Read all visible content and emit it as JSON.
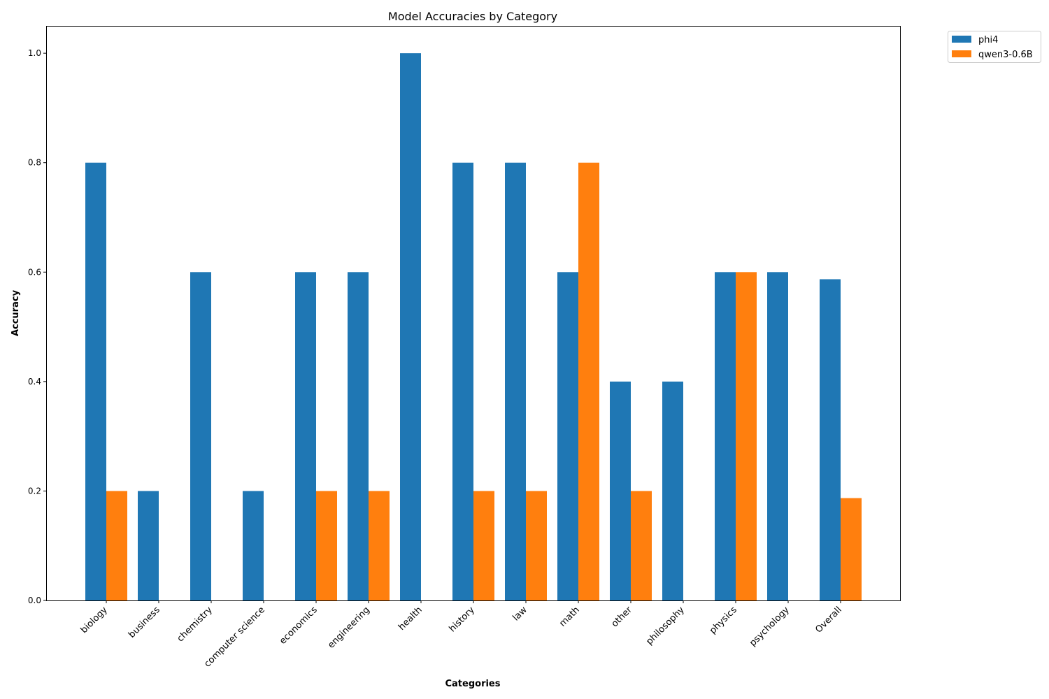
{
  "chart_data": {
    "type": "bar",
    "title": "Model Accuracies by Category",
    "xlabel": "Categories",
    "ylabel": "Accuracy",
    "ylim": [
      0,
      1.05
    ],
    "yticks": [
      "0.0",
      "0.2",
      "0.4",
      "0.6",
      "0.8",
      "1.0"
    ],
    "grid": false,
    "legend_position": "outside-top-right",
    "categories": [
      "biology",
      "business",
      "chemistry",
      "computer science",
      "economics",
      "engineering",
      "health",
      "history",
      "law",
      "math",
      "other",
      "philosophy",
      "physics",
      "psychology",
      "Overall"
    ],
    "series": [
      {
        "name": "phi4",
        "color": "#1f77b4",
        "values": [
          0.8,
          0.2,
          0.6,
          0.2,
          0.6,
          0.6,
          1.0,
          0.8,
          0.8,
          0.6,
          0.4,
          0.4,
          0.6,
          0.6,
          0.587
        ]
      },
      {
        "name": "qwen3-0.6B",
        "color": "#ff7f0e",
        "values": [
          0.2,
          0.0,
          0.0,
          0.0,
          0.2,
          0.2,
          0.0,
          0.2,
          0.2,
          0.8,
          0.2,
          0.0,
          0.6,
          0.0,
          0.187
        ]
      }
    ]
  }
}
